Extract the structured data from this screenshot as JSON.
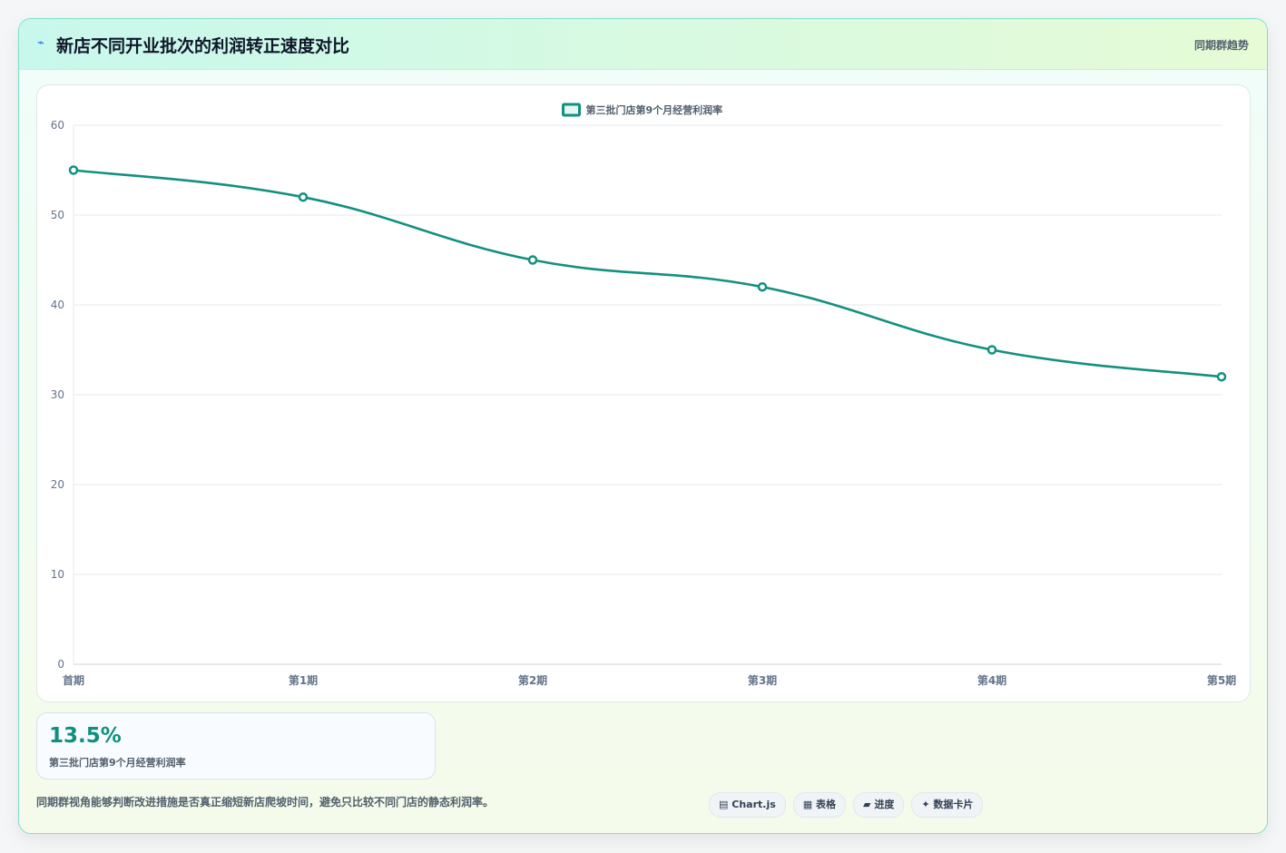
{
  "header": {
    "icon": "trend-line-icon",
    "title": "新店不同开业批次的利润转正速度对比",
    "tag": "同期群趋势"
  },
  "chart_data": {
    "type": "line",
    "categories": [
      "首期",
      "第1期",
      "第2期",
      "第3期",
      "第4期",
      "第5期"
    ],
    "series": [
      {
        "name": "第三批门店第9个月经营利润率",
        "values": [
          55,
          52,
          45,
          42,
          35,
          32
        ],
        "color": "#13907f"
      }
    ],
    "ylim": [
      0,
      60
    ],
    "yticks": [
      0,
      10,
      20,
      30,
      40,
      50,
      60
    ],
    "grid": true,
    "legend": "top-center",
    "smooth": true
  },
  "stat": {
    "value": "13.5%",
    "label": "第三批门店第9个月经营利润率"
  },
  "footer": {
    "note": "同期群视角能够判断改进措施是否真正缩短新店爬坡时间，避免只比较不同门店的静态利润率。"
  },
  "chips": [
    {
      "icon": "chart-icon",
      "glyph": "▤",
      "label": "Chart.js"
    },
    {
      "icon": "table-icon",
      "glyph": "▦",
      "label": "表格"
    },
    {
      "icon": "progress-icon",
      "glyph": "▰",
      "label": "进度"
    },
    {
      "icon": "sparkle-icon",
      "glyph": "✦",
      "label": "数据卡片"
    }
  ],
  "colors": {
    "accent": "#13907f",
    "border": "#7fe0c6"
  }
}
